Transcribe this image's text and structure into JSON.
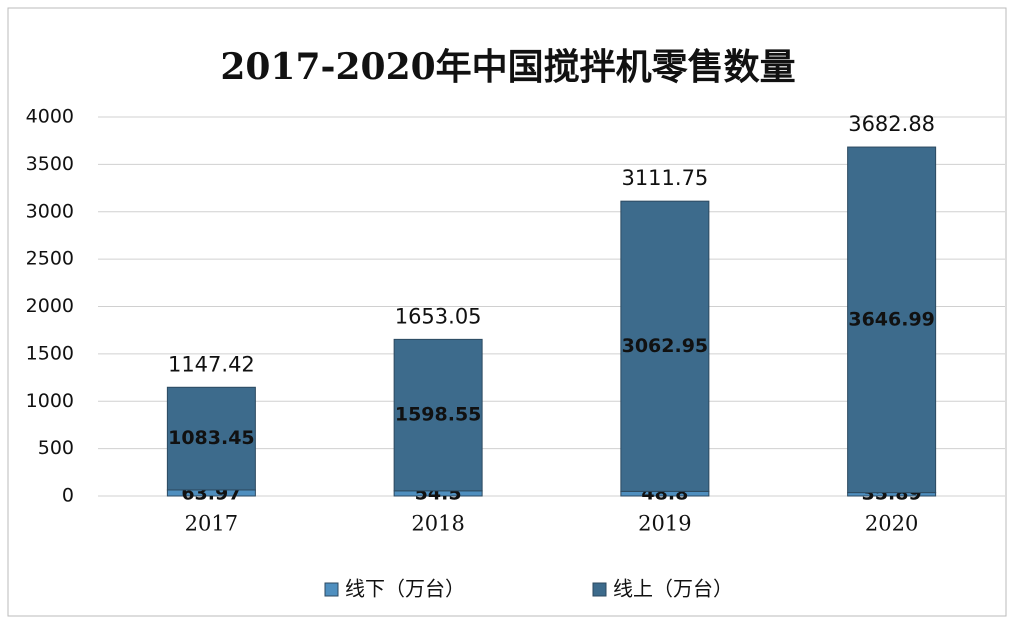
{
  "chart_data": {
    "type": "stacked_bar",
    "title": "2017-2020年中国搅拌机零售数量",
    "categories": [
      "2017",
      "2018",
      "2019",
      "2020"
    ],
    "series": [
      {
        "name": "线下（万台）",
        "color": "#4f8fbf",
        "values": [
          63.97,
          54.5,
          48.8,
          35.89
        ]
      },
      {
        "name": "线上（万台）",
        "color": "#3d6b8c",
        "values": [
          1083.45,
          1598.55,
          3062.95,
          3646.99
        ]
      }
    ],
    "totals": [
      1147.42,
      1653.05,
      3111.75,
      3682.88
    ],
    "ylim": [
      0,
      4000
    ],
    "yticks": [
      0,
      500,
      1000,
      1500,
      2000,
      2500,
      3000,
      3500,
      4000
    ],
    "grid": true,
    "legend": "bottom"
  }
}
